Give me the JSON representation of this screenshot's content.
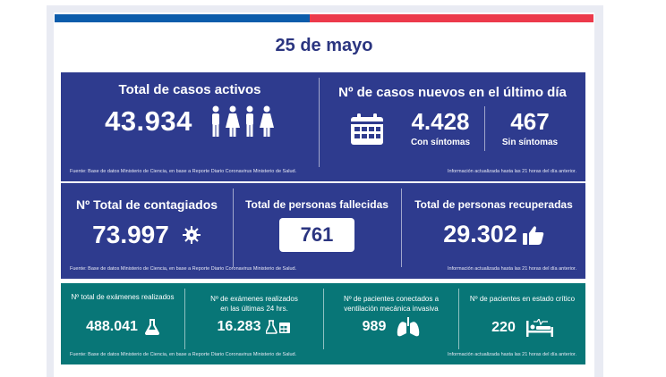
{
  "header": {
    "date": "25 de mayo"
  },
  "colors": {
    "bar_blue": "#0b5cab",
    "bar_red": "#ec3a4b",
    "panel_blue": "#2e3b8e",
    "panel_teal": "#087677"
  },
  "active_cases": {
    "title": "Total de casos activos",
    "value": "43.934",
    "icon": "people-icon"
  },
  "new_cases": {
    "title": "Nº de casos nuevos en el último día",
    "with_symptoms_value": "4.428",
    "with_symptoms_label": "Con síntomas",
    "without_symptoms_value": "467",
    "without_symptoms_label": "Sin síntomas",
    "icon": "calendar-icon"
  },
  "row1_footer": {
    "source": "Fuente: Base de datos Ministerio de Ciencia, en base a Reporte Diario Coronavirus Ministerio de Salud.",
    "updated": "Información actualizada hasta las 21 horas  del día anterior."
  },
  "total_infected": {
    "title": "Nº Total de contagiados",
    "value": "73.997",
    "icon": "virus-icon"
  },
  "deceased": {
    "title": "Total de personas fallecidas",
    "value": "761"
  },
  "recovered": {
    "title": "Total de personas recuperadas",
    "value": "29.302",
    "icon": "thumbs-up-icon"
  },
  "row2_footer": {
    "source": "Fuente: Base de datos Ministerio de Ciencia, en base a Reporte Diario Coronavirus Ministerio de Salud.",
    "updated": "Información actualizada hasta las 21 horas  del día anterior."
  },
  "exams_total": {
    "title": "Nº total de exámenes realizados",
    "value": "488.041",
    "icon": "flask-icon"
  },
  "exams_24h": {
    "title_line1": "Nº de exámenes realizados",
    "title_line2": "en las últimas 24 hrs.",
    "value": "16.283",
    "icon": "flask-calendar-icon"
  },
  "ventilation": {
    "title_line1": "Nº de pacientes conectados a",
    "title_line2": "ventilación mecánica invasiva",
    "value": "989",
    "icon": "lungs-icon"
  },
  "critical": {
    "title": "Nº de pacientes en estado crítico",
    "value": "220",
    "icon": "hospital-bed-icon"
  },
  "row3_footer": {
    "source": "Fuente: Base de datos Ministerio de Ciencia, en base a Reporte Diario Coronavirus Ministerio de Salud.",
    "updated": "Información actualizada hasta las 21 horas  del día anterior."
  }
}
